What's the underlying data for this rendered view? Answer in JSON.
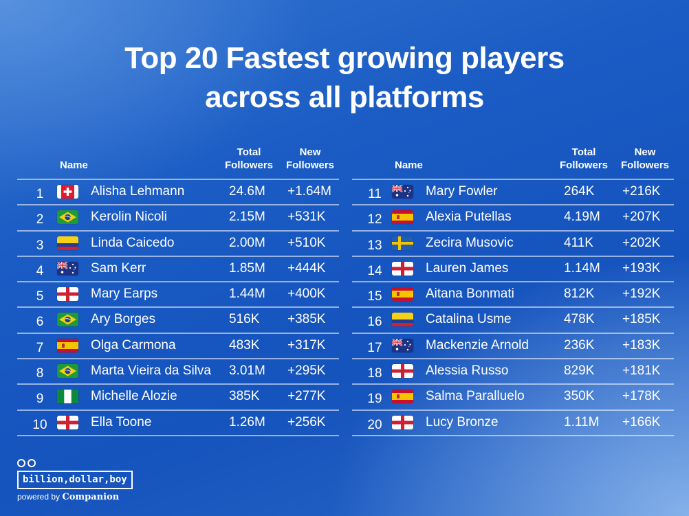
{
  "title": {
    "line1": "Top 20 Fastest growing players",
    "line2": "across all platforms"
  },
  "headers": {
    "name": "Name",
    "total_line1": "Total",
    "total_line2": "Followers",
    "new_line1": "New",
    "new_line2": "Followers"
  },
  "left_rows": [
    {
      "rank": "1",
      "flag": "switzerland-flag",
      "name": "Alisha Lehmann",
      "total": "24.6M",
      "new": "+1.64M"
    },
    {
      "rank": "2",
      "flag": "brazil-flag",
      "name": "Kerolin Nicoli",
      "total": "2.15M",
      "new": "+531K"
    },
    {
      "rank": "3",
      "flag": "colombia-flag",
      "name": "Linda Caicedo",
      "total": "2.00M",
      "new": "+510K"
    },
    {
      "rank": "4",
      "flag": "australia-flag",
      "name": "Sam Kerr",
      "total": "1.85M",
      "new": "+444K"
    },
    {
      "rank": "5",
      "flag": "england-flag",
      "name": "Mary Earps",
      "total": "1.44M",
      "new": "+400K"
    },
    {
      "rank": "6",
      "flag": "brazil-flag",
      "name": "Ary Borges",
      "total": "516K",
      "new": "+385K"
    },
    {
      "rank": "7",
      "flag": "spain-flag",
      "name": "Olga Carmona",
      "total": "483K",
      "new": "+317K"
    },
    {
      "rank": "8",
      "flag": "brazil-flag",
      "name": "Marta Vieira da Silva",
      "total": "3.01M",
      "new": "+295K"
    },
    {
      "rank": "9",
      "flag": "nigeria-flag",
      "name": "Michelle Alozie",
      "total": "385K",
      "new": "+277K"
    },
    {
      "rank": "10",
      "flag": "england-flag",
      "name": "Ella Toone",
      "total": "1.26M",
      "new": "+256K"
    }
  ],
  "right_rows": [
    {
      "rank": "11",
      "flag": "australia-flag",
      "name": "Mary Fowler",
      "total": "264K",
      "new": "+216K"
    },
    {
      "rank": "12",
      "flag": "spain-flag",
      "name": "Alexia Putellas",
      "total": "4.19M",
      "new": "+207K"
    },
    {
      "rank": "13",
      "flag": "sweden-flag",
      "name": "Zecira Musovic",
      "total": "411K",
      "new": "+202K"
    },
    {
      "rank": "14",
      "flag": "england-flag",
      "name": "Lauren James",
      "total": "1.14M",
      "new": "+193K"
    },
    {
      "rank": "15",
      "flag": "spain-flag",
      "name": "Aitana Bonmati",
      "total": "812K",
      "new": "+192K"
    },
    {
      "rank": "16",
      "flag": "colombia-flag",
      "name": "Catalina Usme",
      "total": "478K",
      "new": "+185K"
    },
    {
      "rank": "17",
      "flag": "australia-flag",
      "name": "Mackenzie Arnold",
      "total": "236K",
      "new": "+183K"
    },
    {
      "rank": "18",
      "flag": "england-flag",
      "name": "Alessia Russo",
      "total": "829K",
      "new": "+181K"
    },
    {
      "rank": "19",
      "flag": "spain-flag",
      "name": "Salma Paralluelo",
      "total": "350K",
      "new": "+178K"
    },
    {
      "rank": "20",
      "flag": "england-flag",
      "name": "Lucy Bronze",
      "total": "1.11M",
      "new": "+166K"
    }
  ],
  "logo": {
    "brand": "billion,dollar,boy",
    "powered_prefix": "powered by",
    "powered_brand": "Companion",
    "icon": "double-circle-logo-icon"
  }
}
